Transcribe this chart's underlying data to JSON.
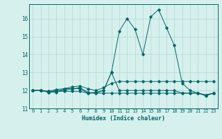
{
  "xlabel": "Humidex (Indice chaleur)",
  "x_values": [
    0,
    1,
    2,
    3,
    4,
    5,
    6,
    7,
    8,
    9,
    10,
    11,
    12,
    13,
    14,
    15,
    16,
    17,
    18,
    19,
    20,
    21,
    22,
    23
  ],
  "line1": [
    12.0,
    12.0,
    11.9,
    11.9,
    12.1,
    12.1,
    12.1,
    11.85,
    11.85,
    12.0,
    13.0,
    12.0,
    12.0,
    12.0,
    12.0,
    12.0,
    12.0,
    12.0,
    12.0,
    11.85,
    11.85,
    11.85,
    11.7,
    11.85
  ],
  "line2": [
    12.0,
    12.0,
    11.95,
    11.95,
    11.95,
    11.95,
    11.95,
    11.85,
    11.9,
    12.0,
    13.0,
    15.3,
    16.0,
    15.4,
    14.0,
    16.1,
    16.5,
    15.5,
    14.5,
    12.4,
    12.0,
    11.85,
    11.75,
    11.85
  ],
  "line3": [
    12.0,
    12.0,
    11.9,
    12.0,
    12.0,
    12.1,
    12.15,
    11.9,
    11.85,
    11.85,
    11.85,
    11.85,
    11.85,
    11.85,
    11.85,
    11.85,
    11.85,
    11.85,
    11.85,
    11.85,
    11.85,
    11.85,
    11.75,
    11.85
  ],
  "line4": [
    12.0,
    12.0,
    11.95,
    12.05,
    12.1,
    12.2,
    12.25,
    12.1,
    12.0,
    12.15,
    12.4,
    12.5,
    12.5,
    12.5,
    12.5,
    12.5,
    12.5,
    12.5,
    12.5,
    12.5,
    12.5,
    12.5,
    12.5,
    12.5
  ],
  "bg_color": "#d6f0ee",
  "line_color": "#006666",
  "grid_color": "#b0d8d4",
  "ylim": [
    11.0,
    16.8
  ],
  "yticks": [
    11,
    12,
    13,
    14,
    15,
    16
  ],
  "xlim": [
    -0.5,
    23.5
  ]
}
